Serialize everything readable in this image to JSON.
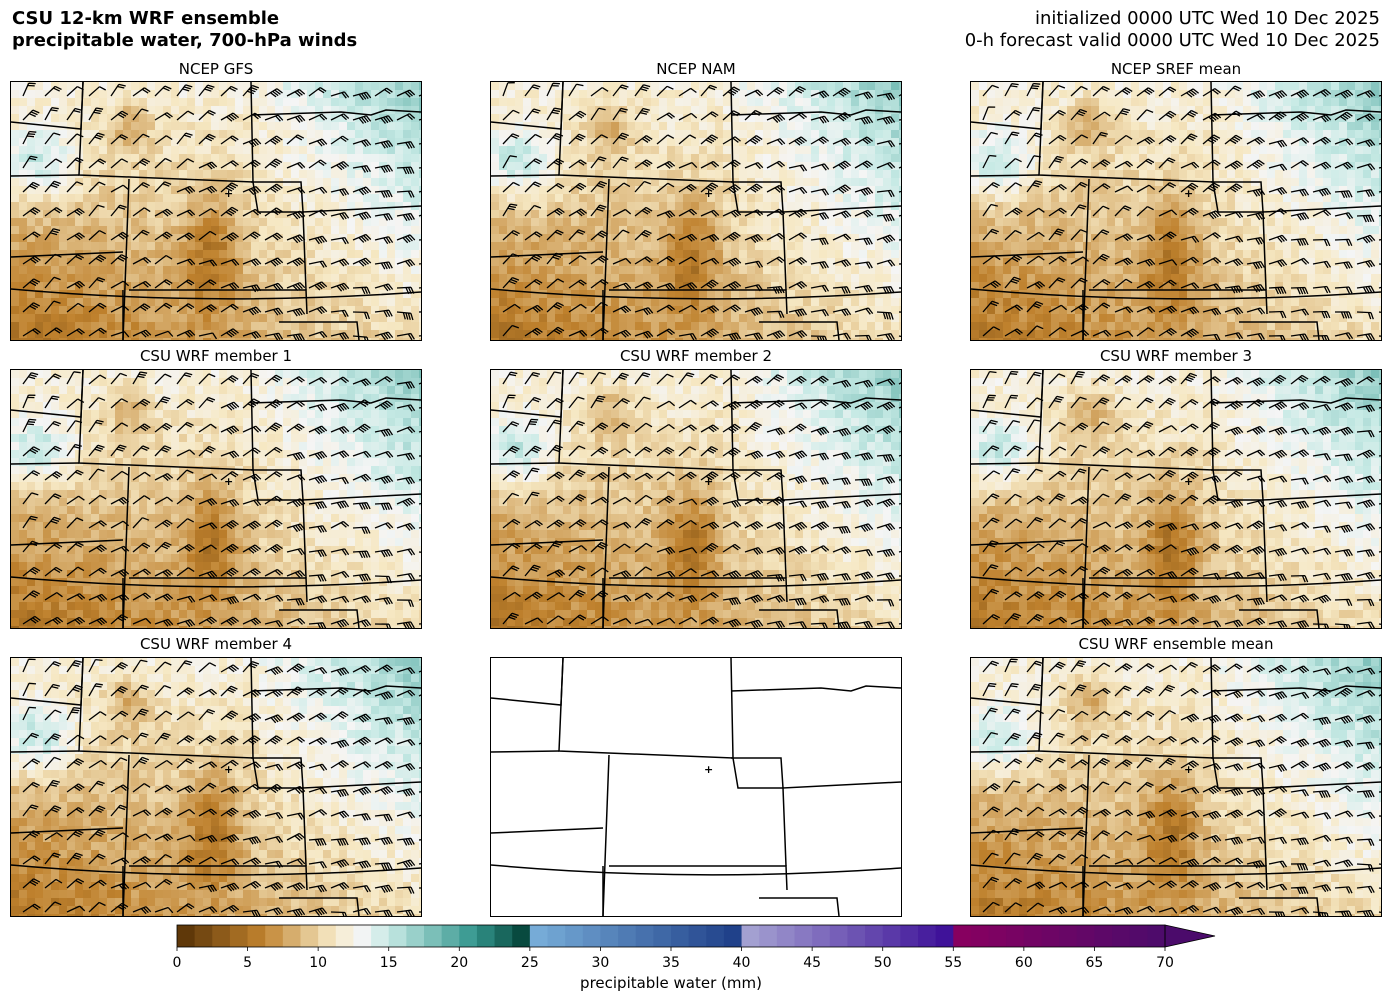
{
  "header": {
    "title_line1": "CSU 12-km WRF ensemble",
    "title_line2": "precipitable water, 700-hPa winds",
    "init_line": "initialized 0000 UTC Wed 10 Dec 2025",
    "valid_line": "0-h forecast valid 0000 UTC Wed 10 Dec 2025"
  },
  "panels": [
    {
      "title": "NCEP GFS",
      "has_data": true
    },
    {
      "title": "NCEP NAM",
      "has_data": true
    },
    {
      "title": "NCEP SREF mean",
      "has_data": true
    },
    {
      "title": "CSU WRF member 1",
      "has_data": true
    },
    {
      "title": "CSU WRF member 2",
      "has_data": true
    },
    {
      "title": "CSU WRF member 3",
      "has_data": true
    },
    {
      "title": "CSU WRF member 4",
      "has_data": true
    },
    {
      "title": "",
      "has_data": false
    },
    {
      "title": "CSU WRF ensemble mean",
      "has_data": true
    }
  ],
  "colorbar": {
    "label": "precipitable water (mm)",
    "ticks": [
      "0",
      "5",
      "10",
      "15",
      "20",
      "25",
      "30",
      "35",
      "40",
      "45",
      "50",
      "55",
      "60",
      "65",
      "70"
    ],
    "min": 0,
    "max": 70,
    "extend": "max",
    "colors": {
      "dry_dark": "#543005",
      "dry_mid": "#bf812d",
      "dry_light": "#f6e8c3",
      "neutral": "#f5f5f5",
      "moist_light": "#c7eae5",
      "moist_mid": "#35978f",
      "moist_dark": "#003c30",
      "blue_light": "#7ab0da",
      "blue_dark": "#1c3c86",
      "purple_light": "#a8a6d4",
      "purple_dark": "#3a0c96",
      "magenta_dark": "#8a0060",
      "violet_dark": "#4b0b6b"
    }
  }
}
